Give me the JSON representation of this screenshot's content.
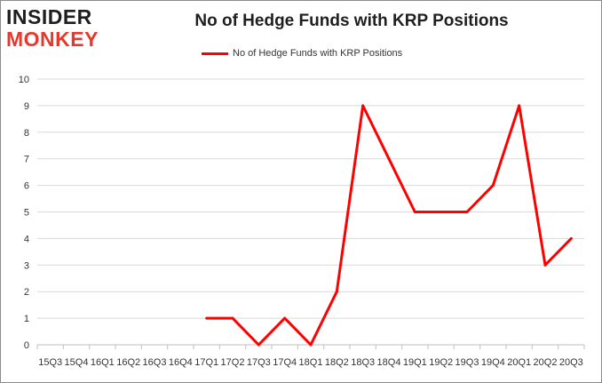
{
  "logo": {
    "line1": "INSIDER",
    "line2": "MONKEY"
  },
  "chart_data": {
    "type": "line",
    "title": "No of Hedge Funds with KRP Positions",
    "xlabel": "",
    "ylabel": "",
    "categories": [
      "15Q3",
      "15Q4",
      "16Q1",
      "16Q2",
      "16Q3",
      "16Q4",
      "17Q1",
      "17Q2",
      "17Q3",
      "17Q4",
      "18Q1",
      "18Q2",
      "18Q3",
      "18Q4",
      "19Q1",
      "19Q2",
      "19Q3",
      "19Q4",
      "20Q1",
      "20Q2",
      "20Q3"
    ],
    "series": [
      {
        "name": "No of Hedge Funds with KRP Positions",
        "color": "#ff0000",
        "values": [
          null,
          null,
          null,
          null,
          null,
          null,
          1,
          1,
          0,
          1,
          0,
          2,
          9,
          7,
          5,
          5,
          5,
          6,
          9,
          3,
          4
        ]
      }
    ],
    "ylim": [
      0,
      10
    ],
    "yticks": [
      0,
      1,
      2,
      3,
      4,
      5,
      6,
      7,
      8,
      9,
      10
    ],
    "grid": true,
    "legend": "top-center"
  }
}
